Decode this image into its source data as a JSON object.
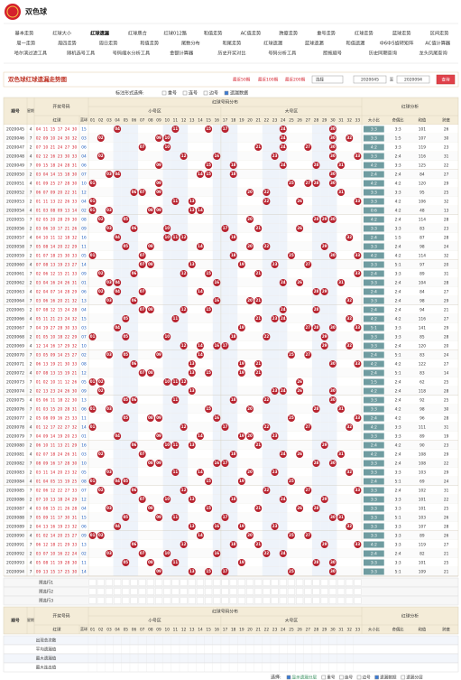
{
  "header": {
    "title": "双色球"
  },
  "nav": {
    "rows": [
      [
        "基本走势",
        "红球大小",
        "红球遗漏",
        "红球质合",
        "红球012路",
        "和值走势",
        "AC值走势",
        "跨度走势",
        "重号走势",
        "红球走势",
        "蓝球走势",
        "区间走势"
      ],
      [
        "周一走势",
        "周四走势",
        "周日走势",
        "和值走势",
        "尾数分布",
        "和尾走势",
        "红球遗漏",
        "蓝球遗漏",
        "和值遗漏",
        "中6中5旋转矩阵",
        "AC值计算器"
      ],
      [
        "哈尔滨过滤工具",
        "随机选号工具",
        "号码缩水分析工具",
        "金额计算器",
        "历史开奖对比",
        "号码分析工具",
        "胆拖缩号",
        "历史同期查询",
        "龙头凤尾查询"
      ]
    ],
    "active_row": 0,
    "active_index": 2
  },
  "toolbar": {
    "title": "双色球红球遗漏走势图",
    "recent": [
      "最近50期",
      "最近100期",
      "最近200期"
    ],
    "select": "选择",
    "from": "2020045",
    "to_label": "至",
    "to": "2020094",
    "query": "查询"
  },
  "filter": {
    "label": "标注形式选择:",
    "options": [
      {
        "label": "重号",
        "checked": false
      },
      {
        "label": "连号",
        "checked": false
      },
      {
        "label": "边号",
        "checked": false
      },
      {
        "label": "遗漏数据",
        "checked": true
      }
    ]
  },
  "table": {
    "headers": {
      "period": "期号",
      "week": "星期",
      "draw": "开奖号码",
      "red": "红球",
      "blue": "蓝球",
      "distribution": "红球号码分布",
      "small": "小号区",
      "big": "大号区",
      "analysis": "红球分析",
      "columns": [
        "01",
        "02",
        "03",
        "04",
        "05",
        "06",
        "07",
        "08",
        "09",
        "10",
        "11",
        "12",
        "13",
        "14",
        "15",
        "16",
        "17",
        "18",
        "19",
        "20",
        "21",
        "22",
        "23",
        "24",
        "25",
        "26",
        "27",
        "28",
        "29",
        "30",
        "31",
        "32",
        "33"
      ],
      "small_count": 16,
      "analysis_columns": [
        "大小比",
        "奇偶比",
        "和值",
        "跨度"
      ]
    },
    "rows": [
      {
        "period": "2020045",
        "week": 4,
        "red": [
          "04",
          "11",
          "15",
          "17",
          "24",
          "30"
        ],
        "blue": "15",
        "size_ratio": "3:3",
        "odd_ratio": "3:3",
        "sum": 101,
        "span": 26
      },
      {
        "period": "2020046",
        "week": 7,
        "red": [
          "02",
          "09",
          "10",
          "24",
          "30",
          "32"
        ],
        "blue": "03",
        "size_ratio": "3:3",
        "odd_ratio": "1:5",
        "sum": 107,
        "span": 30
      },
      {
        "period": "2020047",
        "week": 2,
        "red": [
          "07",
          "10",
          "21",
          "24",
          "27",
          "30"
        ],
        "blue": "06",
        "size_ratio": "4:2",
        "odd_ratio": "3:3",
        "sum": 119,
        "span": 23
      },
      {
        "period": "2020048",
        "week": 4,
        "red": [
          "02",
          "12",
          "16",
          "23",
          "30",
          "33"
        ],
        "blue": "04",
        "size_ratio": "3:3",
        "odd_ratio": "2:4",
        "sum": 116,
        "span": 31
      },
      {
        "period": "2020049",
        "week": 7,
        "red": [
          "09",
          "15",
          "18",
          "24",
          "28",
          "31"
        ],
        "blue": "06",
        "size_ratio": "4:2",
        "odd_ratio": "3:3",
        "sum": 125,
        "span": 22
      },
      {
        "period": "2020050",
        "week": 2,
        "red": [
          "03",
          "04",
          "14",
          "15",
          "18",
          "30"
        ],
        "blue": "07",
        "size_ratio": "2:4",
        "odd_ratio": "2:4",
        "sum": 84,
        "span": 27
      },
      {
        "period": "2020051",
        "week": 4,
        "red": [
          "01",
          "09",
          "25",
          "27",
          "28",
          "30"
        ],
        "blue": "10",
        "size_ratio": "4:2",
        "odd_ratio": "4:2",
        "sum": 120,
        "span": 29
      },
      {
        "period": "2020052",
        "week": 7,
        "red": [
          "06",
          "07",
          "09",
          "20",
          "22",
          "31"
        ],
        "blue": "12",
        "size_ratio": "3:3",
        "odd_ratio": "3:3",
        "sum": 95,
        "span": 25
      },
      {
        "period": "2020053",
        "week": 2,
        "red": [
          "01",
          "11",
          "13",
          "22",
          "26",
          "33"
        ],
        "blue": "04",
        "size_ratio": "3:3",
        "odd_ratio": "4:2",
        "sum": 106,
        "span": 32
      },
      {
        "period": "2020054",
        "week": 4,
        "red": [
          "01",
          "03",
          "08",
          "09",
          "13",
          "14"
        ],
        "blue": "02",
        "size_ratio": "0:6",
        "odd_ratio": "4:2",
        "sum": 48,
        "span": 13
      },
      {
        "period": "2020055",
        "week": 7,
        "red": [
          "02",
          "05",
          "20",
          "28",
          "29",
          "30"
        ],
        "blue": "08",
        "size_ratio": "4:2",
        "odd_ratio": "2:4",
        "sum": 114,
        "span": 28
      },
      {
        "period": "2020056",
        "week": 2,
        "red": [
          "03",
          "06",
          "10",
          "17",
          "21",
          "26"
        ],
        "blue": "09",
        "size_ratio": "3:3",
        "odd_ratio": "3:3",
        "sum": 83,
        "span": 23
      },
      {
        "period": "2020057",
        "week": 4,
        "red": [
          "04",
          "10",
          "11",
          "12",
          "18",
          "32"
        ],
        "blue": "16",
        "size_ratio": "2:4",
        "odd_ratio": "1:5",
        "sum": 87,
        "span": 28
      },
      {
        "period": "2020058",
        "week": 7,
        "red": [
          "05",
          "08",
          "14",
          "20",
          "22",
          "29"
        ],
        "blue": "11",
        "size_ratio": "3:3",
        "odd_ratio": "2:4",
        "sum": 98,
        "span": 24
      },
      {
        "period": "2020059",
        "week": 2,
        "red": [
          "01",
          "07",
          "18",
          "25",
          "30",
          "33"
        ],
        "blue": "05",
        "size_ratio": "4:2",
        "odd_ratio": "4:2",
        "sum": 114,
        "span": 32
      },
      {
        "period": "2020060",
        "week": 4,
        "red": [
          "07",
          "08",
          "13",
          "19",
          "23",
          "27"
        ],
        "blue": "14",
        "size_ratio": "3:3",
        "odd_ratio": "5:1",
        "sum": 97,
        "span": 20
      },
      {
        "period": "2020061",
        "week": 7,
        "red": [
          "02",
          "06",
          "12",
          "15",
          "21",
          "33"
        ],
        "blue": "09",
        "size_ratio": "2:4",
        "odd_ratio": "3:3",
        "sum": 89,
        "span": 31
      },
      {
        "period": "2020062",
        "week": 2,
        "red": [
          "03",
          "04",
          "16",
          "24",
          "26",
          "31"
        ],
        "blue": "01",
        "size_ratio": "3:3",
        "odd_ratio": "2:4",
        "sum": 104,
        "span": 28
      },
      {
        "period": "2020063",
        "week": 4,
        "red": [
          "02",
          "04",
          "07",
          "14",
          "28",
          "29"
        ],
        "blue": "06",
        "size_ratio": "2:4",
        "odd_ratio": "2:4",
        "sum": 84,
        "span": 27
      },
      {
        "period": "2020064",
        "week": 7,
        "red": [
          "03",
          "06",
          "16",
          "20",
          "21",
          "32"
        ],
        "blue": "13",
        "size_ratio": "3:3",
        "odd_ratio": "2:4",
        "sum": 98,
        "span": 29
      },
      {
        "period": "2020065",
        "week": 2,
        "red": [
          "07",
          "08",
          "12",
          "15",
          "24",
          "28"
        ],
        "blue": "04",
        "size_ratio": "2:4",
        "odd_ratio": "2:4",
        "sum": 94,
        "span": 21
      },
      {
        "period": "2020066",
        "week": 4,
        "red": [
          "05",
          "11",
          "21",
          "23",
          "24",
          "32"
        ],
        "blue": "15",
        "size_ratio": "4:2",
        "odd_ratio": "4:2",
        "sum": 116,
        "span": 27
      },
      {
        "period": "2020067",
        "week": 7,
        "red": [
          "04",
          "19",
          "27",
          "28",
          "30",
          "33"
        ],
        "blue": "03",
        "size_ratio": "5:1",
        "odd_ratio": "3:3",
        "sum": 141,
        "span": 29
      },
      {
        "period": "2020068",
        "week": 2,
        "red": [
          "01",
          "05",
          "10",
          "18",
          "22",
          "29"
        ],
        "blue": "07",
        "size_ratio": "3:3",
        "odd_ratio": "3:3",
        "sum": 85,
        "span": 28
      },
      {
        "period": "2020069",
        "week": 4,
        "red": [
          "12",
          "14",
          "16",
          "17",
          "29",
          "32"
        ],
        "blue": "10",
        "size_ratio": "3:3",
        "odd_ratio": "2:4",
        "sum": 120,
        "span": 20
      },
      {
        "period": "2020070",
        "week": 7,
        "red": [
          "03",
          "05",
          "09",
          "14",
          "25",
          "27"
        ],
        "blue": "02",
        "size_ratio": "2:4",
        "odd_ratio": "5:1",
        "sum": 83,
        "span": 24
      },
      {
        "period": "2020071",
        "week": 2,
        "red": [
          "06",
          "13",
          "19",
          "21",
          "30",
          "33"
        ],
        "blue": "08",
        "size_ratio": "4:2",
        "odd_ratio": "4:2",
        "sum": 122,
        "span": 27
      },
      {
        "period": "2020072",
        "week": 4,
        "red": [
          "07",
          "08",
          "13",
          "15",
          "19",
          "21"
        ],
        "blue": "12",
        "size_ratio": "2:4",
        "odd_ratio": "5:1",
        "sum": 83,
        "span": 14
      },
      {
        "period": "2020073",
        "week": 7,
        "red": [
          "01",
          "02",
          "10",
          "11",
          "12",
          "26"
        ],
        "blue": "05",
        "size_ratio": "1:5",
        "odd_ratio": "2:4",
        "sum": 62,
        "span": 25
      },
      {
        "period": "2020074",
        "week": 2,
        "red": [
          "02",
          "13",
          "23",
          "24",
          "26",
          "30"
        ],
        "blue": "09",
        "size_ratio": "4:2",
        "odd_ratio": "2:4",
        "sum": 118,
        "span": 28
      },
      {
        "period": "2020075",
        "week": 4,
        "red": [
          "05",
          "06",
          "11",
          "18",
          "22",
          "30"
        ],
        "blue": "13",
        "size_ratio": "3:3",
        "odd_ratio": "2:4",
        "sum": 92,
        "span": 25
      },
      {
        "period": "2020076",
        "week": 7,
        "red": [
          "01",
          "03",
          "15",
          "20",
          "28",
          "31"
        ],
        "blue": "06",
        "size_ratio": "3:3",
        "odd_ratio": "4:2",
        "sum": 98,
        "span": 30
      },
      {
        "period": "2020077",
        "week": 2,
        "red": [
          "05",
          "08",
          "09",
          "16",
          "25",
          "33"
        ],
        "blue": "11",
        "size_ratio": "2:4",
        "odd_ratio": "4:2",
        "sum": 96,
        "span": 28
      },
      {
        "period": "2020078",
        "week": 4,
        "red": [
          "01",
          "12",
          "17",
          "22",
          "27",
          "32"
        ],
        "blue": "14",
        "size_ratio": "4:2",
        "odd_ratio": "3:3",
        "sum": 111,
        "span": 31
      },
      {
        "period": "2020079",
        "week": 7,
        "red": [
          "04",
          "09",
          "14",
          "19",
          "20",
          "23"
        ],
        "blue": "01",
        "size_ratio": "3:3",
        "odd_ratio": "3:3",
        "sum": 89,
        "span": 19
      },
      {
        "period": "2020080",
        "week": 2,
        "red": [
          "06",
          "10",
          "11",
          "13",
          "21",
          "29"
        ],
        "blue": "16",
        "size_ratio": "2:4",
        "odd_ratio": "4:2",
        "sum": 90,
        "span": 23
      },
      {
        "period": "2020081",
        "week": 4,
        "red": [
          "02",
          "07",
          "18",
          "24",
          "26",
          "31"
        ],
        "blue": "03",
        "size_ratio": "4:2",
        "odd_ratio": "2:4",
        "sum": 108,
        "span": 29
      },
      {
        "period": "2020082",
        "week": 7,
        "red": [
          "08",
          "09",
          "16",
          "17",
          "28",
          "30"
        ],
        "blue": "10",
        "size_ratio": "3:3",
        "odd_ratio": "2:4",
        "sum": 108,
        "span": 22
      },
      {
        "period": "2020083",
        "week": 2,
        "red": [
          "03",
          "11",
          "14",
          "20",
          "23",
          "32"
        ],
        "blue": "05",
        "size_ratio": "3:3",
        "odd_ratio": "3:3",
        "sum": 103,
        "span": 29
      },
      {
        "period": "2020084",
        "week": 4,
        "red": [
          "01",
          "04",
          "05",
          "15",
          "19",
          "25"
        ],
        "blue": "08",
        "size_ratio": "2:4",
        "odd_ratio": "5:1",
        "sum": 69,
        "span": 24
      },
      {
        "period": "2020085",
        "week": 7,
        "red": [
          "02",
          "06",
          "12",
          "22",
          "27",
          "33"
        ],
        "blue": "07",
        "size_ratio": "3:3",
        "odd_ratio": "2:4",
        "sum": 102,
        "span": 31
      },
      {
        "period": "2020086",
        "week": 2,
        "red": [
          "07",
          "10",
          "13",
          "18",
          "24",
          "29"
        ],
        "blue": "12",
        "size_ratio": "3:3",
        "odd_ratio": "3:3",
        "sum": 101,
        "span": 22
      },
      {
        "period": "2020087",
        "week": 4,
        "red": [
          "03",
          "08",
          "15",
          "21",
          "26",
          "28"
        ],
        "blue": "04",
        "size_ratio": "3:3",
        "odd_ratio": "3:3",
        "sum": 101,
        "span": 25
      },
      {
        "period": "2020088",
        "week": 7,
        "red": [
          "05",
          "09",
          "11",
          "17",
          "30",
          "31"
        ],
        "blue": "15",
        "size_ratio": "3:3",
        "odd_ratio": "5:1",
        "sum": 103,
        "span": 26
      },
      {
        "period": "2020089",
        "week": 2,
        "red": [
          "04",
          "13",
          "16",
          "19",
          "23",
          "32"
        ],
        "blue": "06",
        "size_ratio": "3:3",
        "odd_ratio": "3:3",
        "sum": 107,
        "span": 28
      },
      {
        "period": "2020090",
        "week": 4,
        "red": [
          "01",
          "02",
          "14",
          "20",
          "25",
          "27"
        ],
        "blue": "09",
        "size_ratio": "3:3",
        "odd_ratio": "3:3",
        "sum": 89,
        "span": 26
      },
      {
        "period": "2020091",
        "week": 7,
        "red": [
          "06",
          "12",
          "18",
          "21",
          "29",
          "33"
        ],
        "blue": "13",
        "size_ratio": "4:2",
        "odd_ratio": "3:3",
        "sum": 119,
        "span": 27
      },
      {
        "period": "2020092",
        "week": 2,
        "red": [
          "03",
          "07",
          "10",
          "16",
          "22",
          "24"
        ],
        "blue": "02",
        "size_ratio": "2:4",
        "odd_ratio": "2:4",
        "sum": 82,
        "span": 21
      },
      {
        "period": "2020093",
        "week": 4,
        "red": [
          "05",
          "08",
          "11",
          "19",
          "28",
          "30"
        ],
        "blue": "11",
        "size_ratio": "3:3",
        "odd_ratio": "3:3",
        "sum": 101,
        "span": 25
      },
      {
        "period": "2020094",
        "week": 7,
        "red": [
          "09",
          "13",
          "15",
          "17",
          "25",
          "30"
        ],
        "blue": "14",
        "size_ratio": "3:3",
        "odd_ratio": "5:1",
        "sum": 109,
        "span": 21
      }
    ],
    "preselect": [
      "预选行1",
      "预选行2",
      "预选行3"
    ],
    "stats": [
      "出现总次数",
      "平均遗漏值",
      "最大遗漏值",
      "最大连出值"
    ]
  },
  "legend": {
    "label": "选择:",
    "options": [
      {
        "label": "显示遗漏分层",
        "checked": true
      },
      {
        "label": "重号",
        "checked": false
      },
      {
        "label": "连号",
        "checked": false
      },
      {
        "label": "边号",
        "checked": false
      },
      {
        "label": "遗漏数据",
        "checked": true
      },
      {
        "label": "遗漏分层",
        "checked": false
      }
    ]
  }
}
